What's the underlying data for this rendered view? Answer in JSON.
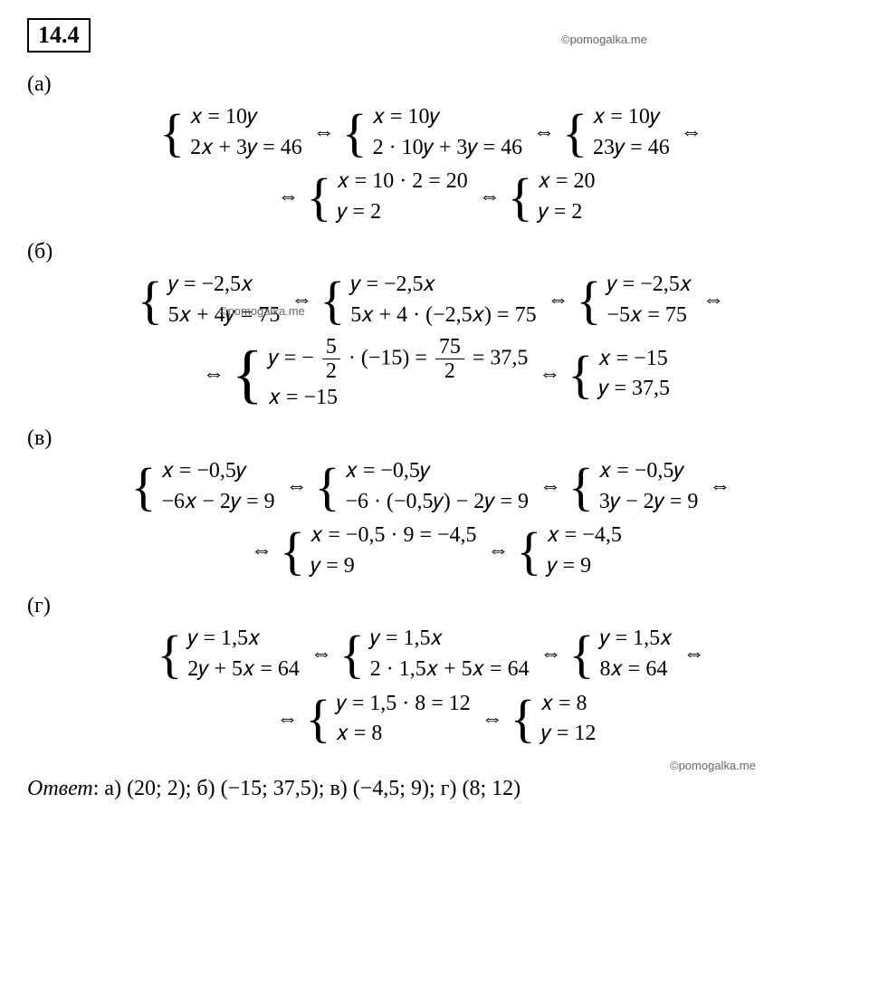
{
  "problem_number": "14.4",
  "watermark": "©pomogalka.me",
  "equiv_symbol": "⇔",
  "parts": {
    "a": {
      "label": "(а)",
      "row1": [
        {
          "eq1": "𝑥 = 10𝑦",
          "eq2": "2𝑥 + 3𝑦 = 46"
        },
        {
          "eq1": "𝑥 = 10𝑦",
          "eq2": "2 · 10𝑦 + 3𝑦 = 46"
        },
        {
          "eq1": "𝑥 = 10𝑦",
          "eq2": "23𝑦 = 46"
        }
      ],
      "row2": [
        {
          "eq1": "𝑥 = 10 · 2 = 20",
          "eq2": "𝑦 = 2"
        },
        {
          "eq1": "𝑥 = 20",
          "eq2": "𝑦 = 2"
        }
      ]
    },
    "b": {
      "label": "(б)",
      "row1": [
        {
          "eq1": "𝑦 = −2,5𝑥",
          "eq2": "5𝑥 + 4𝑦 = 75"
        },
        {
          "eq1": "𝑦 = −2,5𝑥",
          "eq2": "5𝑥 + 4 · (−2,5𝑥) = 75"
        },
        {
          "eq1": "𝑦 = −2,5𝑥",
          "eq2": "−5𝑥 = 75"
        }
      ],
      "row2_prefix": "𝑦 = −",
      "row2_frac1_num": "5",
      "row2_frac1_den": "2",
      "row2_mid": "· (−15) =",
      "row2_frac2_num": "75",
      "row2_frac2_den": "2",
      "row2_suffix": "= 37,5",
      "row2_eq2": "𝑥 = −15",
      "row2_final": {
        "eq1": "𝑥 = −15",
        "eq2": "𝑦 = 37,5"
      }
    },
    "v": {
      "label": "(в)",
      "row1": [
        {
          "eq1": "𝑥 = −0,5𝑦",
          "eq2": "−6𝑥 − 2𝑦 = 9"
        },
        {
          "eq1": "𝑥 = −0,5𝑦",
          "eq2": "−6 · (−0,5𝑦) − 2𝑦 = 9"
        },
        {
          "eq1": "𝑥 = −0,5𝑦",
          "eq2": "3𝑦 − 2𝑦 = 9"
        }
      ],
      "row2": [
        {
          "eq1": "𝑥 = −0,5 · 9 = −4,5",
          "eq2": "𝑦 = 9"
        },
        {
          "eq1": "𝑥 = −4,5",
          "eq2": "𝑦 = 9"
        }
      ]
    },
    "g": {
      "label": "(г)",
      "row1": [
        {
          "eq1": "𝑦 = 1,5𝑥",
          "eq2": "2𝑦 + 5𝑥 = 64"
        },
        {
          "eq1": "𝑦 = 1,5𝑥",
          "eq2": "2 · 1,5𝑥 + 5𝑥 = 64"
        },
        {
          "eq1": "𝑦 = 1,5𝑥",
          "eq2": "8𝑥 = 64"
        }
      ],
      "row2": [
        {
          "eq1": "𝑦 = 1,5 · 8 = 12",
          "eq2": "𝑥 = 8"
        },
        {
          "eq1": "𝑥 = 8",
          "eq2": "𝑦 = 12"
        }
      ]
    }
  },
  "answer": {
    "label": "Ответ",
    "text": ": а) (20; 2); б) (−15; 37,5); в) (−4,5; 9); г) (8; 12)"
  },
  "colors": {
    "text": "#000000",
    "background": "#ffffff",
    "watermark": "#666666"
  },
  "fontsize_body": 24,
  "fontsize_watermark": 13
}
